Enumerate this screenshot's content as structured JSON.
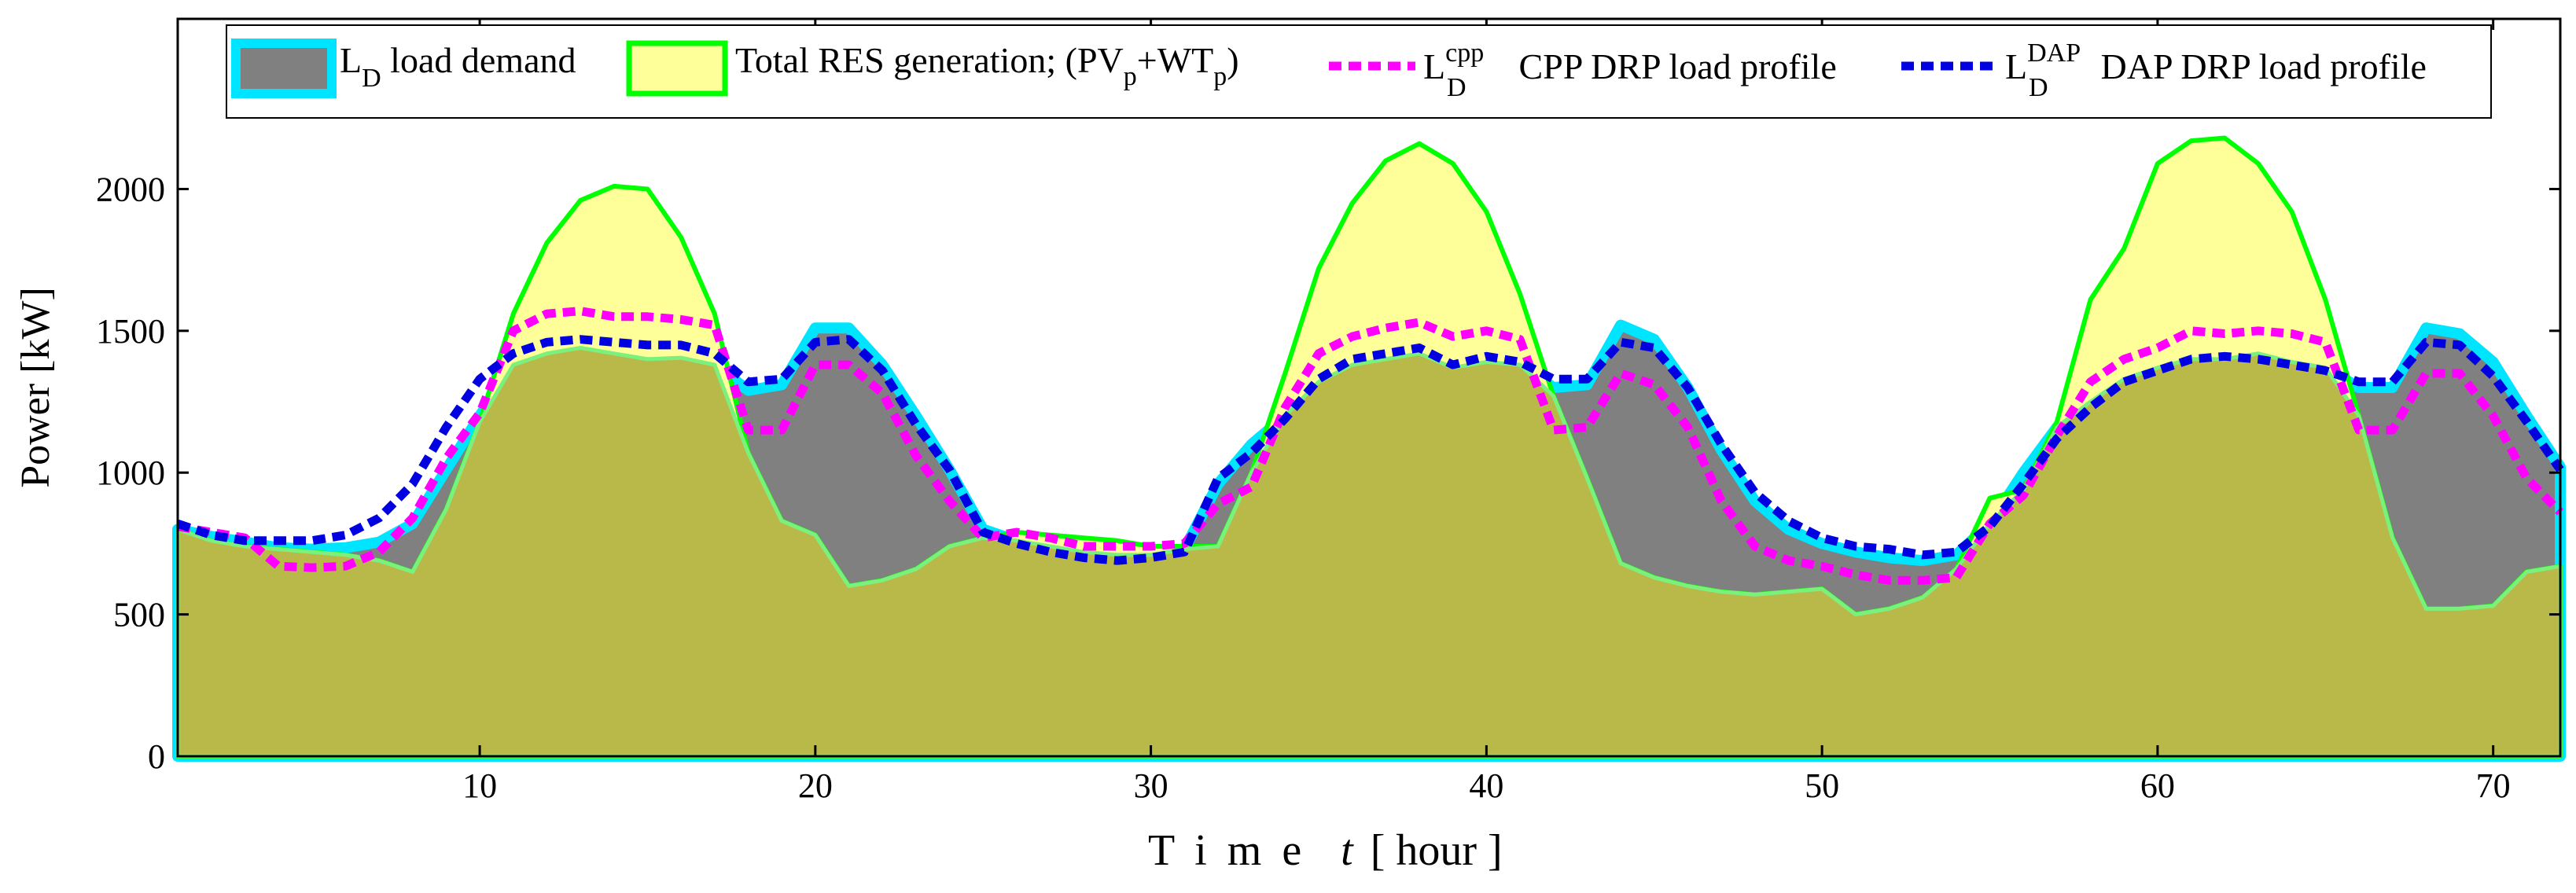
{
  "chart_data": {
    "type": "area",
    "xlabel": {
      "prefix": "T i m e",
      "var": "t",
      "suffix": "[ hour ]"
    },
    "ylabel": "Power [kW]",
    "xlim": [
      1,
      72
    ],
    "ylim": [
      0,
      2600
    ],
    "xticks": [
      10,
      20,
      30,
      40,
      50,
      60,
      70
    ],
    "yticks": [
      0,
      500,
      1000,
      1500,
      2000
    ],
    "grid": false,
    "legend_position": "top",
    "legend": [
      {
        "id": "ld",
        "base": "L",
        "sub": "D",
        "sup": "",
        "text": "load demand"
      },
      {
        "id": "res",
        "base": "",
        "sub": "",
        "sup": "",
        "text": "Total RES generation; (PV",
        "rich": [
          "Total RES generation; (PV",
          "p",
          "+WT",
          "p",
          ")"
        ]
      },
      {
        "id": "cpp",
        "base": "L",
        "sub": "D",
        "sup": "cpp",
        "text": "CPP DRP load profile"
      },
      {
        "id": "dap",
        "base": "L",
        "sub": "D",
        "sup": "DAP",
        "text": "DAP DRP load profile"
      }
    ],
    "colors": {
      "load_fill": "#808080",
      "load_edge": "#00e5ff",
      "res_fill": "#ffff99",
      "res_edge": "#00ff00",
      "overlap_fill": "#b9b94a",
      "overlap_edge": "#7cf07c",
      "cpp": "#ff00ff",
      "dap": "#0000e0"
    },
    "x": [
      1,
      2,
      3,
      4,
      5,
      6,
      7,
      8,
      9,
      10,
      11,
      12,
      13,
      14,
      15,
      16,
      17,
      18,
      19,
      20,
      21,
      22,
      23,
      24,
      25,
      26,
      27,
      28,
      29,
      30,
      31,
      32,
      33,
      34,
      35,
      36,
      37,
      38,
      39,
      40,
      41,
      42,
      43,
      44,
      45,
      46,
      47,
      48,
      49,
      50,
      51,
      52,
      53,
      54,
      55,
      56,
      57,
      58,
      59,
      60,
      61,
      62,
      63,
      64,
      65,
      66,
      67,
      68,
      69,
      70,
      71,
      72
    ],
    "series": [
      {
        "name": "load demand",
        "values": [
          800,
          775,
          755,
          735,
          730,
          735,
          755,
          820,
          1010,
          1200,
          1380,
          1420,
          1440,
          1420,
          1400,
          1405,
          1380,
          1290,
          1310,
          1510,
          1510,
          1380,
          1200,
          1010,
          800,
          760,
          740,
          720,
          710,
          710,
          730,
          960,
          1100,
          1200,
          1320,
          1380,
          1400,
          1420,
          1370,
          1390,
          1380,
          1300,
          1310,
          1520,
          1470,
          1300,
          1080,
          900,
          800,
          750,
          720,
          700,
          690,
          710,
          820,
          1000,
          1160,
          1250,
          1330,
          1370,
          1400,
          1400,
          1420,
          1390,
          1370,
          1300,
          1300,
          1510,
          1490,
          1390,
          1200,
          1020
        ]
      },
      {
        "name": "Total RES generation",
        "values": [
          800,
          760,
          740,
          730,
          720,
          710,
          690,
          650,
          870,
          1180,
          1560,
          1810,
          1960,
          2010,
          2000,
          1830,
          1560,
          1070,
          830,
          780,
          600,
          620,
          660,
          740,
          770,
          790,
          780,
          770,
          760,
          740,
          740,
          740,
          1000,
          1350,
          1720,
          1950,
          2100,
          2160,
          2090,
          1920,
          1630,
          1270,
          980,
          680,
          630,
          600,
          580,
          570,
          580,
          590,
          500,
          520,
          560,
          660,
          910,
          940,
          1180,
          1610,
          1790,
          2090,
          2170,
          2180,
          2090,
          1920,
          1610,
          1200,
          770,
          520,
          520,
          530,
          650,
          670
        ]
      },
      {
        "name": "CPP DRP load profile",
        "values": [
          810,
          790,
          770,
          670,
          665,
          670,
          720,
          840,
          1050,
          1210,
          1500,
          1560,
          1570,
          1550,
          1550,
          1540,
          1520,
          1150,
          1150,
          1380,
          1380,
          1280,
          1060,
          900,
          770,
          790,
          770,
          740,
          740,
          740,
          750,
          890,
          950,
          1230,
          1420,
          1480,
          1510,
          1530,
          1480,
          1500,
          1470,
          1150,
          1160,
          1350,
          1310,
          1160,
          900,
          740,
          690,
          670,
          640,
          620,
          620,
          630,
          820,
          920,
          1130,
          1320,
          1400,
          1440,
          1500,
          1490,
          1500,
          1490,
          1460,
          1150,
          1150,
          1350,
          1350,
          1200,
          980,
          860
        ]
      },
      {
        "name": "DAP DRP load profile",
        "values": [
          820,
          780,
          760,
          760,
          760,
          780,
          840,
          960,
          1160,
          1330,
          1420,
          1460,
          1470,
          1460,
          1450,
          1450,
          1420,
          1320,
          1330,
          1460,
          1470,
          1360,
          1170,
          1010,
          790,
          750,
          720,
          700,
          690,
          700,
          720,
          980,
          1070,
          1190,
          1330,
          1400,
          1420,
          1440,
          1380,
          1410,
          1390,
          1330,
          1330,
          1460,
          1440,
          1300,
          1100,
          930,
          830,
          770,
          740,
          730,
          710,
          720,
          810,
          960,
          1120,
          1230,
          1320,
          1360,
          1400,
          1410,
          1400,
          1380,
          1360,
          1320,
          1320,
          1460,
          1450,
          1340,
          1180,
          1010
        ]
      }
    ]
  }
}
